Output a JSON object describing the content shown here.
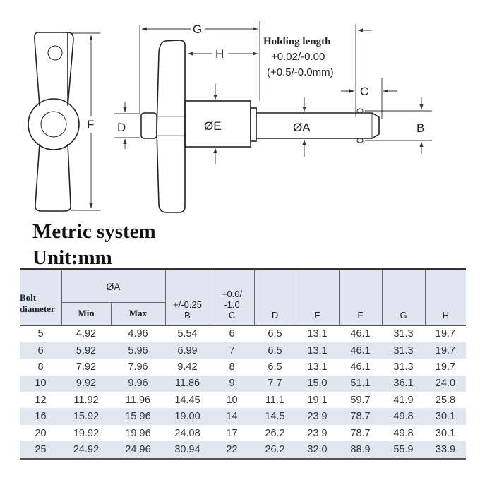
{
  "drawing": {
    "labels": {
      "F": "F",
      "G": "G",
      "H": "H",
      "D": "D",
      "E": "ØE",
      "A": "ØA",
      "B": "B",
      "C": "C"
    },
    "holding": {
      "title": "Holding length",
      "tol_in": "+0.02/-0.00",
      "tol_mm": "(+0.5/-0.0mm)"
    }
  },
  "heading": {
    "system": "Metric system",
    "unit": "Unit:mm"
  },
  "table": {
    "header": {
      "bolt": "Bolt diameter",
      "a": "ØA",
      "a_min": "Min",
      "a_max": "Max",
      "b_tol": "+/-0.25",
      "b": "B",
      "c_tol": "+0.0/ -1.0",
      "c": "C",
      "d": "D",
      "e": "E",
      "f": "F",
      "g": "G",
      "h": "H"
    },
    "rows": [
      [
        "5",
        "4.92",
        "4.96",
        "5.54",
        "6",
        "6.5",
        "13.1",
        "46.1",
        "31.3",
        "19.7"
      ],
      [
        "6",
        "5.92",
        "5.96",
        "6.99",
        "7",
        "6.5",
        "13.1",
        "46.1",
        "31.3",
        "19.7"
      ],
      [
        "8",
        "7.92",
        "7.96",
        "9.42",
        "8",
        "6.5",
        "13.1",
        "46.1",
        "31.3",
        "19.7"
      ],
      [
        "10",
        "9.92",
        "9.96",
        "11.86",
        "9",
        "7.7",
        "15.0",
        "51.1",
        "36.1",
        "24.0"
      ],
      [
        "12",
        "11.92",
        "11.96",
        "14.45",
        "10",
        "11.1",
        "19.1",
        "59.7",
        "41.9",
        "25.8"
      ],
      [
        "16",
        "15.92",
        "15.96",
        "19.00",
        "14",
        "14.5",
        "23.9",
        "78.7",
        "49.8",
        "30.1"
      ],
      [
        "20",
        "19.92",
        "19.96",
        "24.08",
        "17",
        "26.2",
        "23.9",
        "78.7",
        "49.8",
        "30.1"
      ],
      [
        "25",
        "24.92",
        "24.96",
        "30.94",
        "22",
        "26.2",
        "32.0",
        "88.9",
        "55.9",
        "33.9"
      ]
    ]
  }
}
